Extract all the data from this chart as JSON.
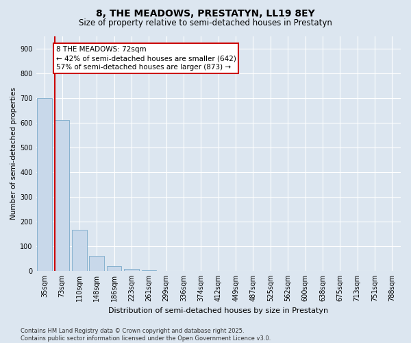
{
  "title": "8, THE MEADOWS, PRESTATYN, LL19 8EY",
  "subtitle": "Size of property relative to semi-detached houses in Prestatyn",
  "xlabel": "Distribution of semi-detached houses by size in Prestatyn",
  "ylabel": "Number of semi-detached properties",
  "categories": [
    "35sqm",
    "73sqm",
    "110sqm",
    "148sqm",
    "186sqm",
    "223sqm",
    "261sqm",
    "299sqm",
    "336sqm",
    "374sqm",
    "412sqm",
    "449sqm",
    "487sqm",
    "525sqm",
    "562sqm",
    "600sqm",
    "638sqm",
    "675sqm",
    "713sqm",
    "751sqm",
    "788sqm"
  ],
  "values": [
    700,
    610,
    165,
    60,
    18,
    8,
    2,
    0,
    0,
    0,
    0,
    0,
    0,
    0,
    0,
    0,
    0,
    0,
    0,
    0,
    0
  ],
  "bar_color": "#c8d8ea",
  "bar_edge_color": "#7aaaca",
  "property_line_x": 1,
  "annotation_text_line1": "8 THE MEADOWS: 72sqm",
  "annotation_text_line2": "← 42% of semi-detached houses are smaller (642)",
  "annotation_text_line3": "57% of semi-detached houses are larger (873) →",
  "annotation_box_color": "#ffffff",
  "annotation_box_edge": "#cc0000",
  "line_color": "#cc0000",
  "ylim": [
    0,
    950
  ],
  "yticks": [
    0,
    100,
    200,
    300,
    400,
    500,
    600,
    700,
    800,
    900
  ],
  "footer": "Contains HM Land Registry data © Crown copyright and database right 2025.\nContains public sector information licensed under the Open Government Licence v3.0.",
  "bg_color": "#dce6f0",
  "plot_bg_color": "#dce6f0",
  "title_fontsize": 10,
  "subtitle_fontsize": 8.5,
  "tick_fontsize": 7,
  "ylabel_fontsize": 7.5,
  "xlabel_fontsize": 8,
  "footer_fontsize": 6,
  "annotation_fontsize": 7.5
}
